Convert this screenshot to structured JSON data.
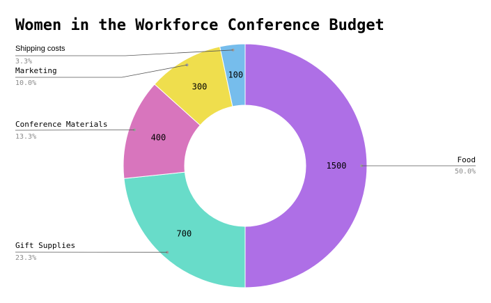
{
  "chart_data": {
    "type": "pie",
    "donut": true,
    "title": "Women in the Workforce Conference Budget",
    "slices": [
      {
        "label": "Food",
        "value": 1500,
        "value_label": "1500",
        "percent": "50.0%",
        "color": "#ae6fe6"
      },
      {
        "label": "Gift Supplies",
        "value": 700,
        "value_label": "700",
        "percent": "23.3%",
        "color": "#68dcc9"
      },
      {
        "label": "Conference Materials",
        "value": 400,
        "value_label": "400",
        "percent": "13.3%",
        "color": "#d875bd"
      },
      {
        "label": "Marketing",
        "value": 300,
        "value_label": "300",
        "percent": "10.0%",
        "color": "#efde4d"
      },
      {
        "label": "Shipping costs",
        "value": 100,
        "value_label": "100",
        "percent": "3.3%",
        "color": "#76bdec"
      }
    ]
  }
}
